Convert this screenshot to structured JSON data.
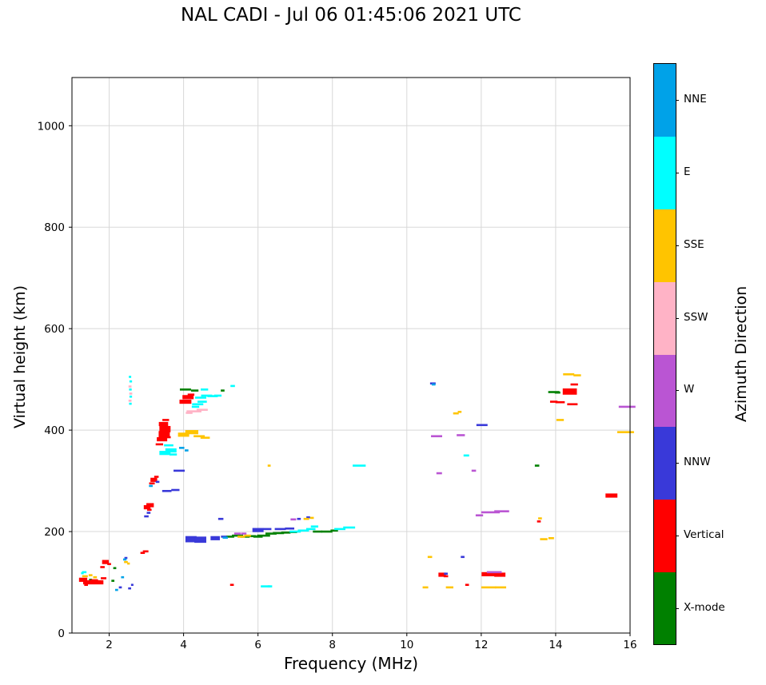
{
  "title": "NAL CADI - Jul 06 01:45:06 2021 UTC",
  "colorbar": {
    "label": "Azimuth Direction",
    "categories_bottom_to_top": [
      {
        "label": "X-mode",
        "color": "#008000"
      },
      {
        "label": "Vertical",
        "color": "#ff0000"
      },
      {
        "label": "NNW",
        "color": "#3939d9"
      },
      {
        "label": "W",
        "color": "#ba55d3"
      },
      {
        "label": "SSW",
        "color": "#ffb3c6"
      },
      {
        "label": "SSE",
        "color": "#ffc400"
      },
      {
        "label": "E",
        "color": "#00ffff"
      },
      {
        "label": "NNE",
        "color": "#00a2e8"
      }
    ]
  },
  "chart_data": {
    "type": "scatter",
    "title": "NAL CADI - Jul 06 01:45:06 2021 UTC",
    "xlabel": "Frequency (MHz)",
    "ylabel": "Virtual height (km)",
    "xlim": [
      1,
      16
    ],
    "ylim": [
      0,
      1095
    ],
    "x_ticks": [
      2,
      4,
      6,
      8,
      10,
      12,
      14,
      16
    ],
    "y_ticks": [
      0,
      200,
      400,
      600,
      800,
      1000
    ],
    "grid": true,
    "legend_position": "right-colorbar",
    "point_format": [
      "freq_MHz",
      "height_km",
      "width_MHz_optional",
      "thickness_optional"
    ],
    "series": [
      {
        "name": "X-mode",
        "color": "#008000",
        "points": [
          [
            1.5,
            105,
            0.08
          ],
          [
            2.1,
            103,
            0.08
          ],
          [
            2.15,
            128,
            0.08
          ],
          [
            4.05,
            480,
            0.3
          ],
          [
            4.3,
            478,
            0.2
          ],
          [
            5.05,
            478,
            0.1
          ],
          [
            5.25,
            190,
            0.22
          ],
          [
            5.45,
            192,
            0.3
          ],
          [
            5.65,
            190,
            0.25
          ],
          [
            5.85,
            191,
            0.2
          ],
          [
            6.0,
            190,
            0.25
          ],
          [
            6.15,
            192,
            0.35
          ],
          [
            6.35,
            196,
            0.3
          ],
          [
            6.55,
            197,
            0.3
          ],
          [
            6.75,
            198,
            0.25
          ],
          [
            6.95,
            199,
            0.2
          ],
          [
            7.6,
            200,
            0.25
          ],
          [
            7.85,
            200,
            0.3
          ],
          [
            8.05,
            202,
            0.2
          ],
          [
            13.5,
            330,
            0.12
          ],
          [
            13.95,
            475,
            0.3
          ],
          [
            14.05,
            474,
            0.15
          ]
        ]
      },
      {
        "name": "Vertical",
        "color": "#ff0000",
        "points": [
          [
            1.3,
            105,
            0.22,
            2
          ],
          [
            1.45,
            100,
            0.3,
            2
          ],
          [
            1.6,
            102,
            0.2,
            2
          ],
          [
            1.72,
            100,
            0.25,
            2
          ],
          [
            1.85,
            108,
            0.15
          ],
          [
            1.82,
            130,
            0.12
          ],
          [
            1.9,
            140,
            0.18,
            2
          ],
          [
            2.0,
            136,
            0.1
          ],
          [
            1.38,
            95,
            0.1
          ],
          [
            2.9,
            158,
            0.12
          ],
          [
            2.98,
            161,
            0.15
          ],
          [
            3.02,
            248,
            0.18,
            2
          ],
          [
            3.1,
            252,
            0.2,
            2
          ],
          [
            3.08,
            243,
            0.12
          ],
          [
            3.15,
            295,
            0.15
          ],
          [
            3.2,
            302,
            0.18,
            2
          ],
          [
            3.27,
            308,
            0.12
          ],
          [
            3.35,
            372,
            0.2
          ],
          [
            3.42,
            382,
            0.28,
            2
          ],
          [
            3.48,
            392,
            0.3,
            3
          ],
          [
            3.5,
            402,
            0.3,
            3
          ],
          [
            3.46,
            412,
            0.25,
            2
          ],
          [
            3.52,
            420,
            0.18
          ],
          [
            3.58,
            386,
            0.15
          ],
          [
            4.05,
            456,
            0.32,
            2
          ],
          [
            4.12,
            465,
            0.3,
            2
          ],
          [
            4.2,
            470,
            0.18
          ],
          [
            5.3,
            95,
            0.1
          ],
          [
            10.95,
            115,
            0.2,
            2
          ],
          [
            11.05,
            112,
            0.12
          ],
          [
            11.62,
            95,
            0.1
          ],
          [
            12.2,
            116,
            0.38,
            2
          ],
          [
            12.5,
            115,
            0.3,
            2
          ],
          [
            13.55,
            220,
            0.1
          ],
          [
            13.95,
            456,
            0.2
          ],
          [
            14.12,
            455,
            0.25
          ],
          [
            14.38,
            476,
            0.38,
            3
          ],
          [
            14.5,
            490,
            0.2
          ],
          [
            14.45,
            451,
            0.28
          ],
          [
            15.5,
            271,
            0.32,
            2
          ]
        ]
      },
      {
        "name": "NNW",
        "color": "#3939d9",
        "points": [
          [
            2.3,
            90,
            0.08
          ],
          [
            2.45,
            148,
            0.08
          ],
          [
            2.55,
            88,
            0.08
          ],
          [
            2.62,
            95,
            0.06
          ],
          [
            3.0,
            230,
            0.12
          ],
          [
            3.06,
            237,
            0.1
          ],
          [
            3.3,
            298,
            0.1
          ],
          [
            3.55,
            280,
            0.25
          ],
          [
            3.78,
            282,
            0.22
          ],
          [
            3.88,
            320,
            0.3
          ],
          [
            4.2,
            185,
            0.3,
            3
          ],
          [
            4.45,
            184,
            0.32,
            3
          ],
          [
            4.85,
            187,
            0.25,
            2
          ],
          [
            5.0,
            225,
            0.14
          ],
          [
            5.08,
            190,
            0.15
          ],
          [
            6.0,
            203,
            0.3,
            2
          ],
          [
            6.25,
            205,
            0.22
          ],
          [
            6.6,
            205,
            0.3
          ],
          [
            6.85,
            206,
            0.25
          ],
          [
            7.1,
            225,
            0.1
          ],
          [
            7.35,
            228,
            0.1
          ],
          [
            10.7,
            492,
            0.15
          ],
          [
            11.05,
            117,
            0.1
          ],
          [
            11.5,
            150,
            0.1
          ],
          [
            12.02,
            410,
            0.3
          ]
        ]
      },
      {
        "name": "W",
        "color": "#ba55d3",
        "points": [
          [
            5.45,
            196,
            0.18
          ],
          [
            5.62,
            196,
            0.14
          ],
          [
            6.95,
            224,
            0.15
          ],
          [
            10.8,
            388,
            0.3
          ],
          [
            10.87,
            315,
            0.15
          ],
          [
            11.45,
            390,
            0.22
          ],
          [
            11.8,
            320,
            0.12
          ],
          [
            11.95,
            232,
            0.2
          ],
          [
            12.25,
            238,
            0.5
          ],
          [
            12.55,
            240,
            0.4
          ],
          [
            12.35,
            120,
            0.4
          ],
          [
            15.92,
            446,
            0.45
          ]
        ]
      },
      {
        "name": "SSW",
        "color": "#ffb3c6",
        "points": [
          [
            2.56,
            458,
            0.08
          ],
          [
            2.58,
            472,
            0.08
          ],
          [
            2.56,
            486,
            0.08
          ],
          [
            4.28,
            437,
            0.4
          ],
          [
            4.5,
            440,
            0.3
          ],
          [
            4.15,
            434,
            0.18
          ]
        ]
      },
      {
        "name": "SSE",
        "color": "#ffc400",
        "points": [
          [
            1.35,
            112,
            0.15
          ],
          [
            1.5,
            114,
            0.1
          ],
          [
            1.62,
            110,
            0.1
          ],
          [
            2.45,
            140,
            0.1
          ],
          [
            2.52,
            137,
            0.07
          ],
          [
            4.0,
            391,
            0.3,
            2
          ],
          [
            4.22,
            396,
            0.35,
            2
          ],
          [
            4.42,
            388,
            0.3
          ],
          [
            4.58,
            385,
            0.25
          ],
          [
            5.55,
            190,
            0.2
          ],
          [
            5.72,
            192,
            0.18
          ],
          [
            6.3,
            330,
            0.08
          ],
          [
            7.3,
            225,
            0.15
          ],
          [
            7.45,
            227,
            0.1
          ],
          [
            10.5,
            90,
            0.15
          ],
          [
            10.62,
            150,
            0.12
          ],
          [
            11.15,
            90,
            0.2
          ],
          [
            11.32,
            433,
            0.15
          ],
          [
            11.42,
            436,
            0.1
          ],
          [
            12.2,
            90,
            0.4
          ],
          [
            12.52,
            90,
            0.3
          ],
          [
            13.58,
            226,
            0.1
          ],
          [
            13.68,
            185,
            0.2
          ],
          [
            13.88,
            187,
            0.15
          ],
          [
            14.12,
            420,
            0.2
          ],
          [
            14.35,
            510,
            0.3
          ],
          [
            14.58,
            508,
            0.2
          ],
          [
            15.88,
            396,
            0.45
          ]
        ]
      },
      {
        "name": "E",
        "color": "#00ffff",
        "points": [
          [
            1.33,
            120,
            0.12
          ],
          [
            1.28,
            118,
            0.07
          ],
          [
            2.57,
            452,
            0.07
          ],
          [
            2.58,
            466,
            0.07
          ],
          [
            2.57,
            480,
            0.07
          ],
          [
            2.58,
            496,
            0.07
          ],
          [
            2.56,
            505,
            0.06
          ],
          [
            3.5,
            355,
            0.3,
            2
          ],
          [
            3.66,
            360,
            0.3,
            2
          ],
          [
            3.6,
            370,
            0.25
          ],
          [
            3.72,
            352,
            0.2
          ],
          [
            4.32,
            446,
            0.2
          ],
          [
            4.38,
            451,
            0.3
          ],
          [
            4.5,
            456,
            0.25
          ],
          [
            4.46,
            464,
            0.3
          ],
          [
            4.62,
            468,
            0.3
          ],
          [
            4.78,
            467,
            0.28
          ],
          [
            4.92,
            468,
            0.2
          ],
          [
            4.56,
            480,
            0.2
          ],
          [
            5.32,
            487,
            0.12
          ],
          [
            6.2,
            92,
            0.25
          ],
          [
            6.32,
            92,
            0.12
          ],
          [
            7.0,
            200,
            0.3
          ],
          [
            7.22,
            202,
            0.3
          ],
          [
            7.42,
            205,
            0.25
          ],
          [
            7.52,
            210,
            0.2
          ],
          [
            8.2,
            205,
            0.3
          ],
          [
            8.45,
            208,
            0.32
          ],
          [
            8.72,
            330,
            0.35
          ],
          [
            11.6,
            350,
            0.15
          ]
        ]
      },
      {
        "name": "NNE",
        "color": "#00a2e8",
        "points": [
          [
            2.2,
            85,
            0.08
          ],
          [
            2.36,
            110,
            0.08
          ],
          [
            2.42,
            145,
            0.09
          ],
          [
            3.12,
            290,
            0.1
          ],
          [
            3.95,
            365,
            0.14
          ],
          [
            4.08,
            360,
            0.1
          ],
          [
            5.12,
            188,
            0.14
          ],
          [
            10.72,
            490,
            0.1
          ]
        ]
      }
    ]
  }
}
